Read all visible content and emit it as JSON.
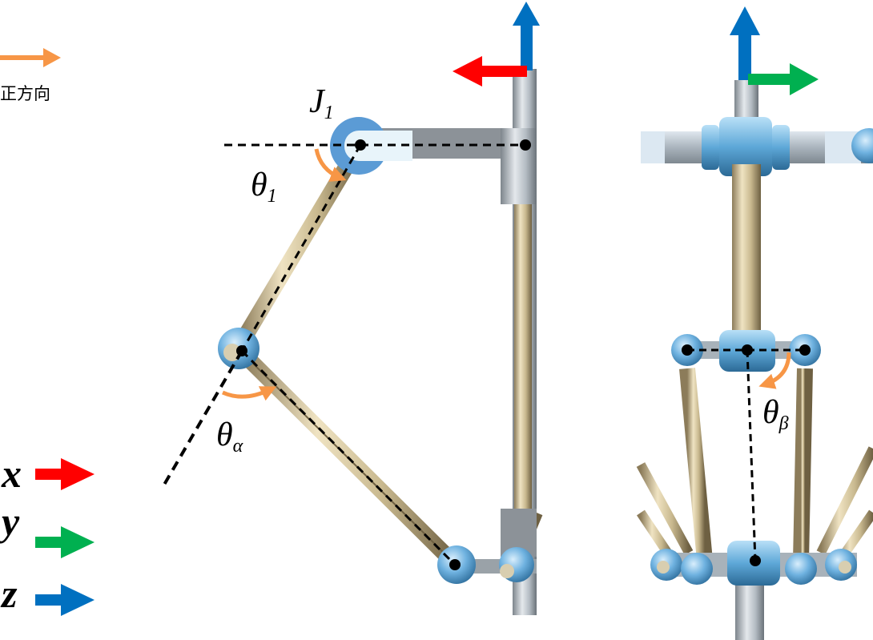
{
  "legend": {
    "positive_direction_label": "正方向",
    "positive_direction_color": "#F79646",
    "axes": [
      {
        "letter": "x",
        "color": "#FF0000"
      },
      {
        "letter": "y",
        "color": "#00B050"
      },
      {
        "letter": "z",
        "color": "#0070C0"
      }
    ]
  },
  "labels": {
    "joint": {
      "main": "J",
      "sub": "1"
    },
    "theta1": {
      "main": "θ",
      "sub": "1"
    },
    "theta_alpha": {
      "main": "θ",
      "sub": "α"
    },
    "theta_beta": {
      "main": "θ",
      "sub": "β"
    }
  },
  "colors": {
    "joint_blue": "#5B9BD5",
    "rod_gold": "#C9B98F",
    "gray_link": "#8C9298",
    "dashed_line": "#000000",
    "angle_arrow": "#F79646"
  }
}
